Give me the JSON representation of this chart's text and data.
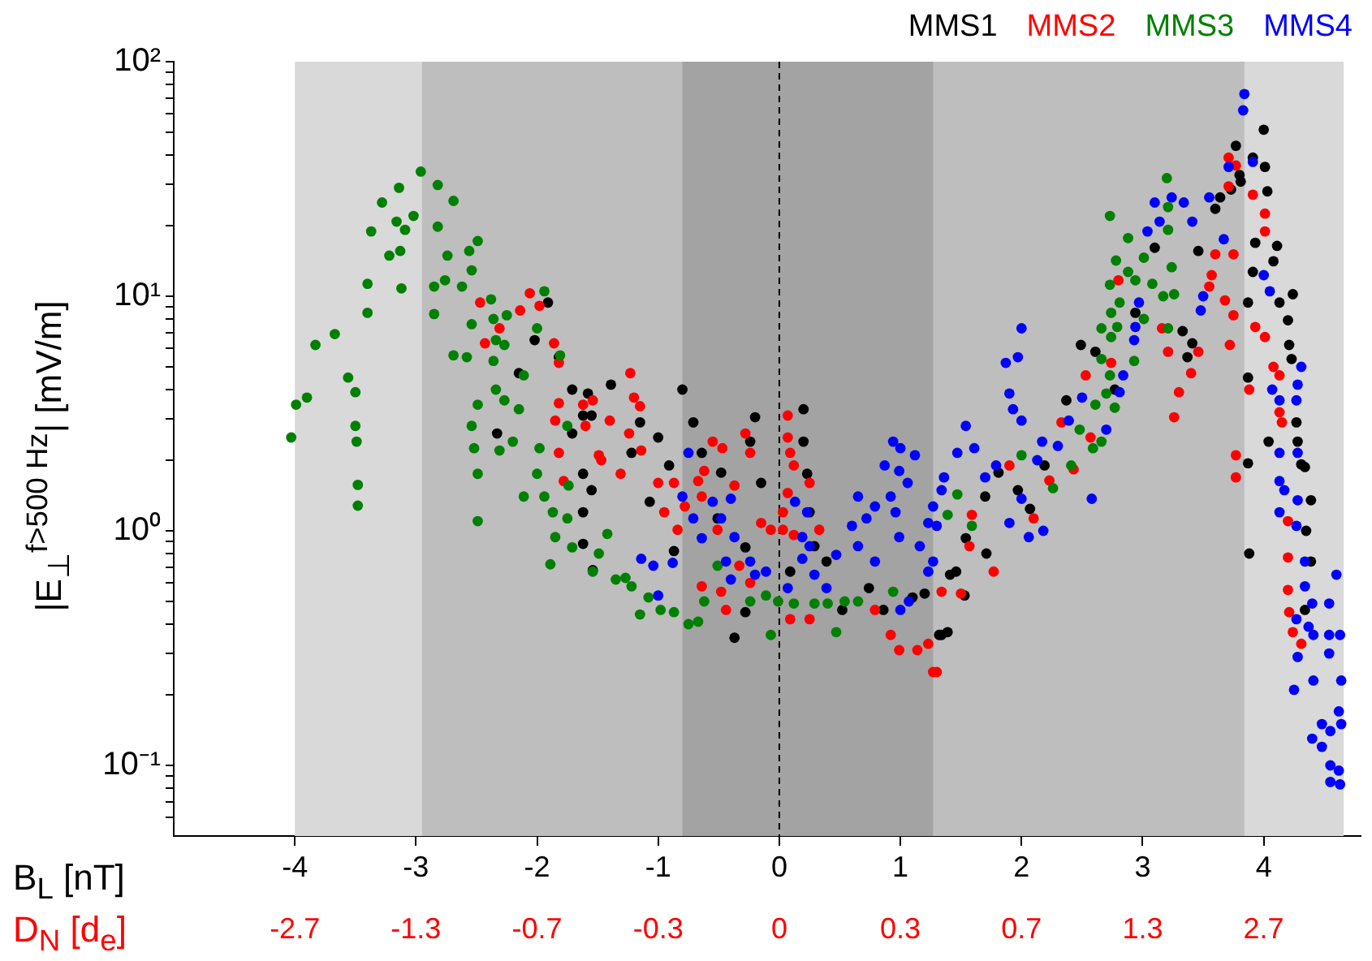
{
  "chart_data": {
    "type": "scatter",
    "xlabel": "B$_{L}$  [nT]",
    "ylabel": "|E$_{⊥}$$^{f>500 Hz}$|  [mV/m]",
    "annotations": [
      "D$_{N}$  [d$_{e}$]",
      "-2.7",
      "-1.3",
      "-0.7",
      "-0.3",
      "0",
      "0.3",
      "0.7",
      "1.3",
      "2.7"
    ],
    "xlim": [
      -5,
      4.8
    ],
    "xticks": [
      -4,
      -3,
      -2,
      -1,
      0,
      1,
      2,
      3,
      4
    ],
    "ylim": [
      0.05,
      100
    ],
    "log": "y",
    "yticks": [
      {
        "value": 0.06,
        "label": null
      },
      {
        "value": 0.07,
        "label": null
      },
      {
        "value": 0.08,
        "label": null
      },
      {
        "value": 0.09,
        "label": null
      },
      {
        "value": 0.1,
        "label": "10⁻¹"
      },
      {
        "value": 0.2,
        "label": null
      },
      {
        "value": 0.3,
        "label": null
      },
      {
        "value": 0.4,
        "label": null
      },
      {
        "value": 0.5,
        "label": null
      },
      {
        "value": 0.6,
        "label": null
      },
      {
        "value": 0.7,
        "label": null
      },
      {
        "value": 0.8,
        "label": null
      },
      {
        "value": 0.9,
        "label": null
      },
      {
        "value": 1,
        "label": "10⁰"
      },
      {
        "value": 2,
        "label": null
      },
      {
        "value": 3,
        "label": null
      },
      {
        "value": 4,
        "label": null
      },
      {
        "value": 5,
        "label": null
      },
      {
        "value": 6,
        "label": null
      },
      {
        "value": 7,
        "label": null
      },
      {
        "value": 8,
        "label": null
      },
      {
        "value": 9,
        "label": null
      },
      {
        "value": 10,
        "label": "10¹"
      },
      {
        "value": 20,
        "label": null
      },
      {
        "value": 30,
        "label": null
      },
      {
        "value": 40,
        "label": null
      },
      {
        "value": 50,
        "label": null
      },
      {
        "value": 60,
        "label": null
      },
      {
        "value": 70,
        "label": null
      },
      {
        "value": 80,
        "label": null
      },
      {
        "value": 90,
        "label": null
      },
      {
        "value": 100,
        "label": "10²"
      }
    ],
    "grid": false,
    "legend": "top right",
    "marker": "circle",
    "bands": [
      {
        "axis": "x",
        "from": -4,
        "to": 4.66,
        "color": "#d9d9d9"
      },
      {
        "axis": "x",
        "from": -2.95,
        "to": 3.84,
        "color": "#bebebe"
      },
      {
        "axis": "x",
        "from": -0.8,
        "to": 1.27,
        "color": "#a3a3a3"
      }
    ],
    "ref_lines": [
      {
        "axis": "x",
        "value": 0,
        "color": "#000000",
        "line_style": "dashed"
      }
    ],
    "series": [
      {
        "name": "MMS1",
        "color": "#000000",
        "x": [
          -1.91,
          -2.02,
          -1.82,
          -2.15,
          -1.71,
          -1.58,
          -1.62,
          -1.71,
          -2.33,
          -1.62,
          -1.55,
          -1.62,
          -1.62,
          -1.54,
          -1.39,
          -1.55,
          -1.15,
          -1.0,
          -1.22,
          -0.91,
          -1.07,
          -0.8,
          -0.71,
          -0.64,
          -0.48,
          -0.2,
          -0.24,
          -0.15,
          -0.87,
          -0.28,
          -0.37,
          -0.51,
          -0.28,
          0.2,
          0.2,
          0.23,
          0.25,
          0.29,
          0.39,
          0.52,
          0.74,
          0.86,
          1.1,
          1.2,
          1.32,
          1.39,
          1.46,
          0.09,
          1.34,
          1.41,
          1.53,
          1.54,
          1.7,
          1.71,
          1.81,
          1.97,
          2.07,
          2.19,
          2.37,
          2.61,
          2.49,
          2.77,
          2.94,
          3.1,
          3.33,
          3.41,
          3.37,
          3.46,
          3.6,
          3.64,
          3.77,
          3.8,
          3.91,
          4.0,
          4.01,
          4.03,
          3.93,
          3.91,
          4.11,
          4.08,
          3.87,
          4.13,
          4.2,
          4.24,
          4.21,
          4.23,
          3.87,
          4.27,
          4.04,
          4.28,
          3.87,
          4.31,
          4.34,
          4.39,
          4.35,
          4.39,
          4.34,
          3.88,
          3.73,
          3.81
        ],
        "values": [
          9.4,
          6.5,
          5.5,
          4.7,
          4.0,
          3.85,
          3.1,
          2.6,
          2.6,
          1.75,
          1.49,
          1.2,
          0.88,
          0.68,
          4.2,
          3.1,
          2.9,
          2.5,
          2.15,
          1.9,
          1.33,
          4.0,
          2.9,
          2.15,
          1.77,
          3.05,
          2.4,
          1.6,
          0.82,
          0.85,
          0.35,
          1.13,
          0.45,
          3.3,
          2.4,
          1.75,
          1.2,
          0.86,
          0.74,
          0.46,
          0.57,
          0.46,
          0.52,
          0.54,
          0.36,
          0.37,
          0.67,
          0.67,
          0.36,
          0.65,
          0.53,
          0.93,
          1.4,
          0.8,
          1.77,
          1.49,
          1.24,
          1.9,
          3.6,
          5.8,
          6.2,
          4.0,
          8.5,
          16.1,
          7.1,
          6.3,
          5.5,
          15.6,
          23.6,
          26.4,
          43.8,
          32.9,
          39,
          51.3,
          35.6,
          28,
          16.9,
          12.7,
          16.4,
          14.1,
          9.4,
          9.4,
          7.9,
          10.2,
          6.2,
          5.4,
          4.5,
          2.9,
          2.4,
          2.4,
          1.94,
          1.92,
          1.87,
          1.35,
          1.0,
          0.74,
          0.46,
          0.8,
          28.5,
          30.8
        ]
      },
      {
        "name": "MMS2",
        "color": "#ff0000",
        "x": [
          -2.47,
          -2.14,
          -2.06,
          -1.98,
          -2.43,
          -2.31,
          -1.86,
          -1.82,
          -1.82,
          -1.62,
          -1.54,
          -1.85,
          -1.6,
          -1.82,
          -1.49,
          -1.78,
          -1.23,
          -1.2,
          -1.15,
          -1.24,
          -1.14,
          -1.4,
          -1.47,
          -1.31,
          -1.0,
          -0.87,
          -0.95,
          -0.84,
          -0.78,
          -0.67,
          -0.64,
          -0.62,
          -0.55,
          -0.47,
          -0.51,
          -0.37,
          -0.28,
          -0.24,
          -0.15,
          -0.07,
          -0.64,
          -0.48,
          -0.44,
          -0.33,
          -0.24,
          0.07,
          0.07,
          0.09,
          0.12,
          0.25,
          0.07,
          0.03,
          0.03,
          0.12,
          0.33,
          0.25,
          0.09,
          0.79,
          0.92,
          0.99,
          1.14,
          1.23,
          1.3,
          1.34,
          1.5,
          1.57,
          1.27,
          1.77,
          1.59,
          1.9,
          2.1,
          2.23,
          2.43,
          2.33,
          2.53,
          2.74,
          2.57,
          2.8,
          3.16,
          3.21,
          3.3,
          3.26,
          3.4,
          3.46,
          3.55,
          3.57,
          3.68,
          3.72,
          3.75,
          3.77,
          3.77,
          3.6,
          3.75,
          3.71,
          3.77,
          3.71,
          3.91,
          4.01,
          4.01,
          3.93,
          4.01,
          4.08,
          4.13,
          3.88,
          4.13,
          4.15,
          4.2,
          4.2,
          4.2,
          4.21,
          4.24,
          4.31
        ],
        "values": [
          9.4,
          8.7,
          10.3,
          9.1,
          6.3,
          7.3,
          6.3,
          5.2,
          3.5,
          3.45,
          3.6,
          2.95,
          2.8,
          2.15,
          2.1,
          1.63,
          4.7,
          3.7,
          3.4,
          2.6,
          2.2,
          2.95,
          2.0,
          1.75,
          1.6,
          1.6,
          1.2,
          1.01,
          1.27,
          1.63,
          1.4,
          1.8,
          2.4,
          2.25,
          1.01,
          1.56,
          2.6,
          2.15,
          1.08,
          1.01,
          0.58,
          0.55,
          0.46,
          0.71,
          0.6,
          3.1,
          2.5,
          2.15,
          1.9,
          1.6,
          1.45,
          1.2,
          1.01,
          0.96,
          1.01,
          0.42,
          0.42,
          0.46,
          0.36,
          0.31,
          0.31,
          0.33,
          0.25,
          0.55,
          0.54,
          0.86,
          0.25,
          0.67,
          1.17,
          1.9,
          1.13,
          1.64,
          1.83,
          2.9,
          4.6,
          5.2,
          2.5,
          11.7,
          7.3,
          5.8,
          3.9,
          3.05,
          4.7,
          5.8,
          11.0,
          12.3,
          9.6,
          6.2,
          8.3,
          2.1,
          1.69,
          15.1,
          15.1,
          39,
          36.1,
          29.4,
          27.1,
          22.5,
          18.9,
          7.4,
          6.7,
          5.0,
          4.6,
          4.0,
          3.2,
          2.9,
          1.1,
          0.77,
          0.56,
          0.45,
          0.37,
          0.33
        ]
      },
      {
        "name": "MMS3",
        "color": "#008000",
        "x": [
          -4.03,
          -3.99,
          -3.9,
          -3.83,
          -3.67,
          -3.56,
          -3.5,
          -3.5,
          -3.49,
          -3.48,
          -3.48,
          -3.4,
          -3.4,
          -3.37,
          -3.28,
          -3.14,
          -2.96,
          -2.82,
          -2.69,
          -3.16,
          -3.09,
          -3.02,
          -3.22,
          -3.13,
          -3.12,
          -2.82,
          -2.74,
          -2.85,
          -2.76,
          -2.62,
          -2.49,
          -2.56,
          -2.54,
          -2.85,
          -2.69,
          -2.58,
          -2.54,
          -2.38,
          -2.36,
          -2.25,
          -2.34,
          -2.36,
          -2.27,
          -2.34,
          -2.27,
          -2.49,
          -2.54,
          -2.52,
          -2.49,
          -2.49,
          -2.31,
          -2.2,
          -2.15,
          -2.11,
          -2.0,
          -1.94,
          -1.98,
          -2.0,
          -2.11,
          -1.94,
          -1.87,
          -1.85,
          -1.89,
          -1.75,
          -1.74,
          -1.71,
          -1.54,
          -1.75,
          -1.81,
          -1.42,
          -1.49,
          -1.35,
          -1.27,
          -1.22,
          -1.08,
          -1.15,
          -0.98,
          -0.87,
          -0.75,
          -0.67,
          -0.62,
          -0.51,
          -0.24,
          -0.11,
          -0.07,
          -0.01,
          0.12,
          0.29,
          0.4,
          0.47,
          0.54,
          0.65,
          0.94,
          1.39,
          1.47,
          1.59,
          2.0,
          2.26,
          2.41,
          2.48,
          2.59,
          2.66,
          2.61,
          2.7,
          2.77,
          2.66,
          2.66,
          2.74,
          2.73,
          2.74,
          2.79,
          2.81,
          2.73,
          2.78,
          2.88,
          2.88,
          2.94,
          3.01,
          3.01,
          2.93,
          3.08,
          3.17,
          3.24,
          3.26,
          3.21,
          3.21,
          3.2,
          2.73,
          3.21
        ],
        "values": [
          2.5,
          3.45,
          3.7,
          6.2,
          6.9,
          4.5,
          3.9,
          2.8,
          2.4,
          1.57,
          1.28,
          8.5,
          11.3,
          18.9,
          25.1,
          29,
          34,
          29.8,
          25.5,
          20.8,
          19.2,
          22,
          14.9,
          15.6,
          10.8,
          19.8,
          14.9,
          11,
          11.7,
          11,
          17.2,
          15.6,
          12.9,
          8.4,
          5.6,
          5.5,
          7.6,
          9.7,
          8,
          8.3,
          6.5,
          5.3,
          6.2,
          4.0,
          3.6,
          3.45,
          2.8,
          2.25,
          1.75,
          1.1,
          2.2,
          2.4,
          3.3,
          4.6,
          7.3,
          10.5,
          2.25,
          1.75,
          1.4,
          1.4,
          1.2,
          0.94,
          0.72,
          1.13,
          1.56,
          0.85,
          0.67,
          2.8,
          5.6,
          0.97,
          0.8,
          0.62,
          0.63,
          0.58,
          0.52,
          0.44,
          0.46,
          0.45,
          0.4,
          0.41,
          0.5,
          0.71,
          0.5,
          0.53,
          0.36,
          0.5,
          0.49,
          0.49,
          0.49,
          0.37,
          0.5,
          0.5,
          0.55,
          1.17,
          1.43,
          1.05,
          2.1,
          1.52,
          1.9,
          2.7,
          2.25,
          2.4,
          3.45,
          3.85,
          3.35,
          5.4,
          7.3,
          6.7,
          4.6,
          8.5,
          7.4,
          9.4,
          11.2,
          14.2,
          17.7,
          12.7,
          11.7,
          14.6,
          8.0,
          5.3,
          11.3,
          10,
          13.3,
          10.2,
          19.2,
          24,
          31.9,
          22,
          7.3
        ]
      },
      {
        "name": "MMS4",
        "color": "#0000ff",
        "x": [
          -1.14,
          -1.04,
          -1.0,
          -0.75,
          -0.8,
          -0.71,
          -0.88,
          -0.64,
          -0.55,
          -0.48,
          -0.4,
          -0.37,
          -0.44,
          -0.4,
          -0.24,
          -0.2,
          -0.11,
          0.13,
          0.23,
          0.19,
          0.25,
          0.19,
          0.29,
          0.07,
          0.39,
          0.47,
          0.6,
          0.72,
          0.79,
          0.65,
          0.65,
          0.79,
          0.87,
          0.94,
          1.0,
          0.99,
          0.92,
          0.96,
          0.99,
          1.06,
          1.12,
          1.16,
          1.23,
          1.23,
          1.34,
          1.36,
          1.47,
          1.54,
          1.0,
          1.07,
          1.27,
          1.3,
          1.27,
          1.61,
          1.7,
          1.79,
          1.87,
          1.97,
          2.0,
          1.9,
          1.93,
          2.0,
          1.9,
          2.06,
          2.0,
          2.13,
          2.17,
          2.18,
          2.3,
          2.39,
          2.5,
          2.58,
          2.7,
          2.81,
          2.84,
          2.93,
          2.94,
          2.97,
          3.04,
          3.1,
          3.14,
          3.24,
          3.34,
          3.41,
          3.55,
          3.48,
          3.5,
          3.67,
          3.71,
          3.84,
          3.83,
          3.91,
          4.0,
          4.05,
          4.07,
          4.13,
          4.31,
          4.28,
          4.27,
          4.13,
          4.28,
          4.13,
          4.17,
          4.28,
          4.13,
          4.27,
          4.34,
          4.34,
          4.4,
          4.37,
          4.27,
          4.41,
          4.54,
          4.54,
          4.6,
          4.63,
          4.28,
          4.25,
          4.41,
          4.54,
          4.4,
          4.48,
          4.55,
          4.62,
          4.64,
          4.64,
          4.55,
          4.62,
          4.55,
          4.63,
          4.48
        ],
        "values": [
          0.76,
          0.71,
          0.53,
          2.15,
          1.4,
          1.13,
          0.73,
          0.93,
          1.33,
          1.13,
          1.37,
          0.94,
          0.74,
          0.62,
          0.74,
          0.65,
          0.67,
          1.33,
          1.2,
          0.94,
          0.86,
          0.76,
          0.65,
          0.57,
          0.57,
          0.79,
          1.05,
          1.13,
          1.27,
          1.4,
          0.86,
          0.74,
          1.9,
          2.4,
          2.25,
          1.8,
          1.4,
          1.2,
          0.94,
          1.6,
          2.1,
          0.86,
          1.08,
          0.67,
          1.49,
          1.69,
          2.15,
          2.8,
          0.46,
          0.5,
          1.27,
          1.05,
          0.74,
          2.25,
          1.69,
          1.9,
          5.2,
          5.5,
          7.3,
          3.85,
          3.3,
          2.95,
          1.08,
          0.94,
          1.37,
          2.0,
          2.4,
          1.0,
          2.3,
          2.95,
          3.7,
          1.37,
          2.7,
          3.9,
          4.6,
          6.5,
          7.4,
          9.4,
          18.9,
          25.1,
          20.8,
          26.4,
          25.1,
          20.8,
          26.4,
          8.7,
          10,
          17.5,
          35.6,
          72.8,
          62,
          37.4,
          12.3,
          10.5,
          4.0,
          3.6,
          5.0,
          4.2,
          3.6,
          2.15,
          2.15,
          1.63,
          1.49,
          1.35,
          1.2,
          1.05,
          0.74,
          0.58,
          0.49,
          0.39,
          0.42,
          0.36,
          0.36,
          0.49,
          0.65,
          0.36,
          0.29,
          0.21,
          0.23,
          0.3,
          0.13,
          0.12,
          0.14,
          0.17,
          0.23,
          0.15,
          0.1,
          0.095,
          0.085,
          0.083,
          0.15
        ]
      }
    ]
  }
}
